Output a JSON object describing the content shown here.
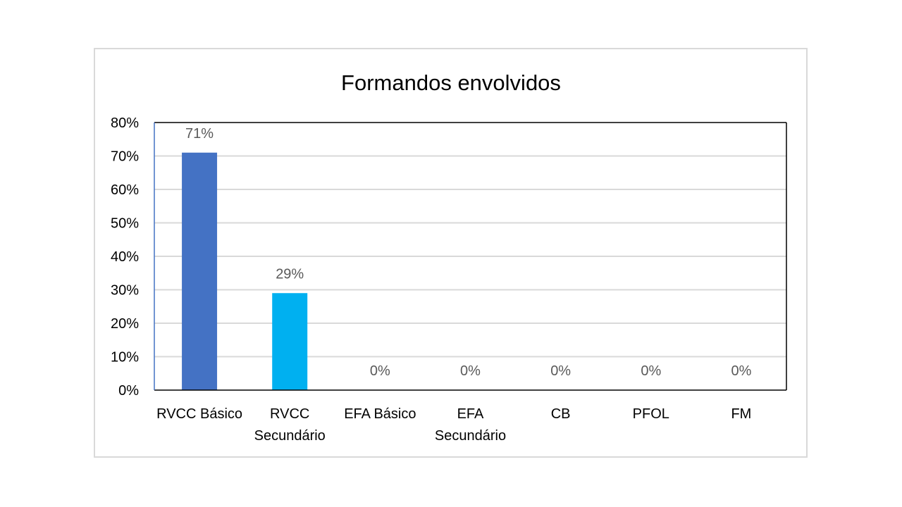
{
  "chart_data": {
    "type": "bar",
    "title": "Formandos envolvidos",
    "categories": [
      [
        "RVCC Básico"
      ],
      [
        "RVCC",
        "Secundário"
      ],
      [
        "EFA Básico"
      ],
      [
        "EFA",
        "Secundário"
      ],
      [
        "CB"
      ],
      [
        "PFOL"
      ],
      [
        "FM"
      ]
    ],
    "values": [
      71,
      29,
      0,
      0,
      0,
      0,
      0
    ],
    "data_labels": [
      "71%",
      "29%",
      "0%",
      "0%",
      "0%",
      "0%",
      "0%"
    ],
    "bar_colors": [
      "#4472c4",
      "#00b0f0",
      "#4472c4",
      "#4472c4",
      "#4472c4",
      "#4472c4",
      "#4472c4"
    ],
    "ylim": [
      0,
      80
    ],
    "y_ticks": [
      0,
      10,
      20,
      30,
      40,
      50,
      60,
      70,
      80
    ],
    "y_tick_labels": [
      "0%",
      "10%",
      "20%",
      "30%",
      "40%",
      "50%",
      "60%",
      "70%",
      "80%"
    ],
    "xlabel": "",
    "ylabel": "",
    "grid": true,
    "legend": "none"
  }
}
